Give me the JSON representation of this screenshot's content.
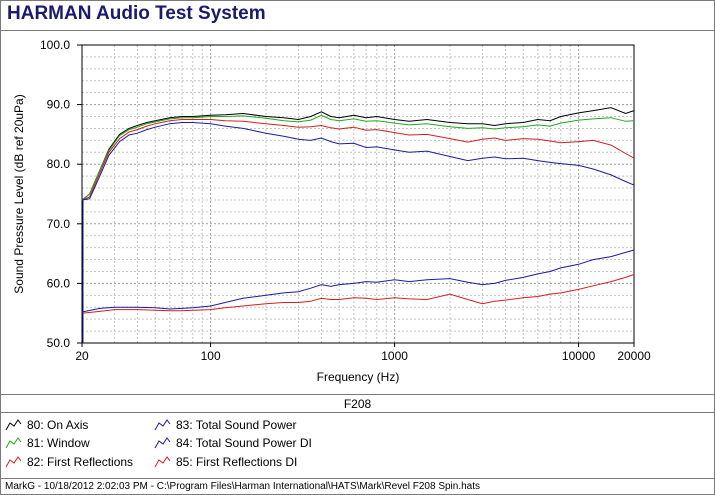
{
  "app": {
    "title": "HARMAN Audio Test System"
  },
  "chart_caption": "F208",
  "legend": [
    {
      "label": "80: On Axis",
      "color": "#000000"
    },
    {
      "label": "81: Window",
      "color": "#1faa1f"
    },
    {
      "label": "82: First Reflections",
      "color": "#d42020"
    },
    {
      "label": "83: Total Sound Power",
      "color": "#1c1c9e"
    },
    {
      "label": "84: Total Sound Power DI",
      "color": "#1c1c9e"
    },
    {
      "label": "85: First Reflections DI",
      "color": "#d42020"
    }
  ],
  "status_bar": "MarkG - 10/18/2012 2:02:03 PM - C:\\Program Files\\Harman International\\HATS\\Mark\\Revel F208 Spin.hats",
  "chart_data": {
    "type": "line",
    "xlabel": "Frequency (Hz)",
    "ylabel": "Sound Pressure Level (dB ref 20uPa)",
    "xscale": "log",
    "xlim": [
      20,
      20000
    ],
    "ylim": [
      50,
      100
    ],
    "x_ticks": [
      "20",
      "100",
      "1000",
      "10000",
      "20000"
    ],
    "y_ticks": [
      "50.0",
      "60.0",
      "70.0",
      "80.0",
      "90.0",
      "100.0"
    ],
    "grid": true,
    "series": [
      {
        "name": "80: On Axis",
        "color": "#000000",
        "x": [
          20,
          22,
          25,
          28,
          32,
          36,
          40,
          45,
          50,
          60,
          70,
          80,
          100,
          120,
          150,
          200,
          250,
          300,
          350,
          400,
          450,
          500,
          600,
          700,
          800,
          1000,
          1200,
          1500,
          2000,
          2500,
          3000,
          3500,
          4000,
          5000,
          6000,
          7000,
          8000,
          10000,
          12000,
          15000,
          18000,
          20000
        ],
        "y": [
          74,
          75,
          79,
          82.5,
          85,
          86,
          86.5,
          87,
          87.3,
          87.8,
          88,
          88,
          88.2,
          88.3,
          88.5,
          88,
          87.8,
          87.5,
          88,
          88.8,
          88,
          87.8,
          88.2,
          87.8,
          88,
          87.5,
          87.2,
          87.5,
          87,
          86.8,
          86.8,
          86.5,
          86.8,
          87,
          87.5,
          87.3,
          88,
          88.6,
          89,
          89.5,
          88.5,
          89
        ]
      },
      {
        "name": "81: Window",
        "color": "#1faa1f",
        "x": [
          20,
          22,
          25,
          28,
          32,
          36,
          40,
          45,
          50,
          60,
          70,
          80,
          100,
          120,
          150,
          200,
          250,
          300,
          350,
          400,
          450,
          500,
          600,
          700,
          800,
          1000,
          1200,
          1500,
          2000,
          2500,
          3000,
          3500,
          4000,
          5000,
          6000,
          7000,
          8000,
          10000,
          12000,
          15000,
          18000,
          20000
        ],
        "y": [
          74,
          75,
          79,
          82.3,
          84.8,
          85.8,
          86.2,
          86.8,
          87.1,
          87.6,
          87.8,
          87.8,
          88,
          88,
          88.1,
          87.7,
          87.3,
          87.1,
          87.4,
          88.2,
          87.5,
          87.3,
          87.6,
          87.2,
          87.3,
          86.9,
          86.6,
          86.8,
          86.3,
          86,
          86.1,
          85.9,
          86.1,
          86.3,
          86.6,
          86.4,
          86.9,
          87.4,
          87.6,
          87.8,
          87.2,
          87.3
        ]
      },
      {
        "name": "82: First Reflections",
        "color": "#d42020",
        "x": [
          20,
          22,
          25,
          28,
          32,
          36,
          40,
          45,
          50,
          60,
          70,
          80,
          100,
          120,
          150,
          200,
          250,
          300,
          350,
          400,
          450,
          500,
          600,
          700,
          800,
          1000,
          1200,
          1500,
          2000,
          2500,
          3000,
          3500,
          4000,
          5000,
          6000,
          7000,
          8000,
          10000,
          12000,
          15000,
          18000,
          20000
        ],
        "y": [
          74,
          74.5,
          78.5,
          82,
          84.3,
          85.4,
          85.8,
          86.4,
          86.8,
          87.3,
          87.5,
          87.5,
          87.5,
          87.3,
          87.2,
          86.8,
          86.5,
          86.2,
          86.3,
          86.5,
          86.1,
          85.9,
          86.2,
          85.7,
          85.8,
          85.3,
          84.9,
          85,
          84.3,
          83.7,
          84.2,
          84.4,
          84,
          84.3,
          84.2,
          83.9,
          83.6,
          83.8,
          84,
          83.2,
          81.8,
          81
        ]
      },
      {
        "name": "83: Total Sound Power",
        "color": "#1c1c9e",
        "x": [
          20,
          22,
          25,
          28,
          32,
          36,
          40,
          45,
          50,
          60,
          70,
          80,
          100,
          120,
          150,
          200,
          250,
          300,
          350,
          400,
          450,
          500,
          600,
          700,
          800,
          1000,
          1200,
          1500,
          2000,
          2500,
          3000,
          3500,
          4000,
          5000,
          6000,
          7000,
          8000,
          10000,
          12000,
          15000,
          18000,
          20000
        ],
        "y": [
          74,
          74.2,
          78,
          81.5,
          83.8,
          84.9,
          85.2,
          85.8,
          86.2,
          86.8,
          87,
          87,
          86.8,
          86.4,
          86,
          85.2,
          84.7,
          84.2,
          84,
          84.4,
          83.8,
          83.4,
          83.5,
          82.8,
          82.9,
          82.4,
          82,
          82.2,
          81.3,
          80.6,
          81,
          81.2,
          80.9,
          81,
          80.6,
          80.3,
          80.1,
          79.8,
          79.2,
          78.2,
          77.1,
          76.5
        ]
      },
      {
        "name": "84: Total Sound Power DI",
        "color": "#1c1c9e",
        "x": [
          20,
          25,
          30,
          40,
          50,
          60,
          70,
          80,
          100,
          120,
          150,
          200,
          250,
          300,
          350,
          400,
          450,
          500,
          600,
          700,
          800,
          1000,
          1200,
          1500,
          2000,
          2500,
          3000,
          3500,
          4000,
          5000,
          6000,
          7000,
          8000,
          10000,
          12000,
          15000,
          18000,
          20000
        ],
        "y": [
          55.2,
          55.8,
          56,
          56,
          55.9,
          55.7,
          55.8,
          55.9,
          56.2,
          56.8,
          57.5,
          58,
          58.4,
          58.6,
          59.2,
          59.8,
          59.5,
          59.8,
          60,
          60.3,
          60.2,
          60.6,
          60.3,
          60.6,
          60.8,
          60.2,
          59.8,
          60,
          60.5,
          61,
          61.6,
          62,
          62.6,
          63.2,
          64,
          64.5,
          65.2,
          65.6
        ]
      },
      {
        "name": "85: First Reflections DI",
        "color": "#d42020",
        "x": [
          20,
          25,
          30,
          40,
          50,
          60,
          70,
          80,
          100,
          120,
          150,
          200,
          250,
          300,
          350,
          400,
          450,
          500,
          600,
          700,
          800,
          1000,
          1200,
          1500,
          2000,
          2500,
          3000,
          3500,
          4000,
          5000,
          6000,
          7000,
          8000,
          10000,
          12000,
          15000,
          18000,
          20000
        ],
        "y": [
          55,
          55.3,
          55.6,
          55.6,
          55.5,
          55.4,
          55.4,
          55.5,
          55.6,
          55.9,
          56.2,
          56.6,
          56.8,
          56.8,
          57,
          57.5,
          57.3,
          57.3,
          57.6,
          57.5,
          57.3,
          57.6,
          57.4,
          57.3,
          58.2,
          57.3,
          56.6,
          57,
          57.2,
          57.6,
          57.8,
          58.2,
          58.4,
          59,
          59.6,
          60.3,
          61,
          61.5
        ]
      }
    ]
  }
}
